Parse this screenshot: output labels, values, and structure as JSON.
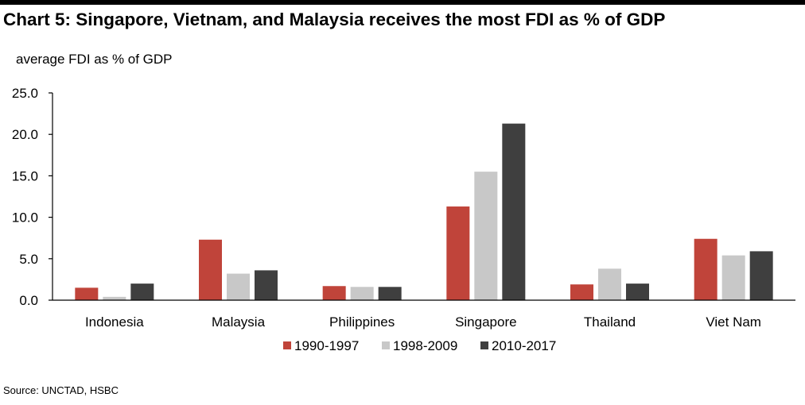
{
  "page": {
    "title": "Chart 5: Singapore, Vietnam, and Malaysia receives the most FDI as % of GDP",
    "source": "Source: UNCTAD, HSBC"
  },
  "chart_data": {
    "type": "bar",
    "title": "Chart 5: Singapore, Vietnam, and Malaysia receives the most FDI as % of GDP",
    "ylabel": "average FDI as % of GDP",
    "xlabel": "",
    "ylim": [
      0,
      25
    ],
    "yticks": [
      0,
      5,
      10,
      15,
      20,
      25
    ],
    "ytick_labels": [
      "0.0",
      "5.0",
      "10.0",
      "15.0",
      "20.0",
      "25.0"
    ],
    "grid": false,
    "legend_position": "bottom",
    "categories": [
      "Indonesia",
      "Malaysia",
      "Philippines",
      "Singapore",
      "Thailand",
      "Viet Nam"
    ],
    "series": [
      {
        "name": "1990-1997",
        "color": "#c0443a",
        "values": [
          1.5,
          7.3,
          1.7,
          11.3,
          1.9,
          7.4
        ]
      },
      {
        "name": "1998-2009",
        "color": "#c8c8c8",
        "values": [
          0.4,
          3.2,
          1.6,
          15.5,
          3.8,
          5.4
        ]
      },
      {
        "name": "2010-2017",
        "color": "#3f3f3f",
        "values": [
          2.0,
          3.6,
          1.6,
          21.3,
          2.0,
          5.9
        ]
      }
    ]
  }
}
